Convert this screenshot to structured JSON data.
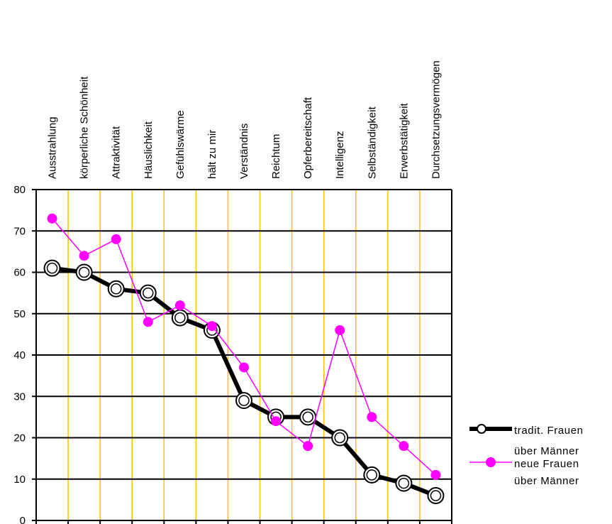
{
  "chart_data": {
    "type": "line",
    "categories": [
      "Ausstrahlung",
      "körperliche Schönheit",
      "Attraktivität",
      "Häuslichkeit",
      "Gefühlswärme",
      "hält zu mir",
      "Verständnis",
      "Reichtum",
      "Opferbereitschaft",
      "Intelligenz",
      "Selbständigkeit",
      "Erwerbstätigkeit",
      "Durchsetzungsvermögen"
    ],
    "series": [
      {
        "name_lines": [
          "tradit. Frauen",
          "über Männer"
        ],
        "color": "#000000",
        "values": [
          61,
          60,
          56,
          55,
          49,
          46,
          29,
          25,
          25,
          20,
          11,
          9,
          6
        ]
      },
      {
        "name_lines": [
          "neue Frauen",
          "über Männer"
        ],
        "color": "#ff00ff",
        "values": [
          73,
          64,
          68,
          48,
          52,
          47,
          37,
          24,
          18,
          46,
          25,
          18,
          11
        ]
      }
    ],
    "ylim": [
      0,
      80
    ],
    "yticks": [
      "0",
      "10",
      "20",
      "30",
      "40",
      "50",
      "60",
      "70",
      "80"
    ],
    "ytick_values": [
      0,
      10,
      20,
      30,
      40,
      50,
      60,
      70,
      80
    ],
    "horizontal_grid": true,
    "vertical_grid": true,
    "vertical_grid_color": "#ffc000",
    "legend_position": "right"
  }
}
